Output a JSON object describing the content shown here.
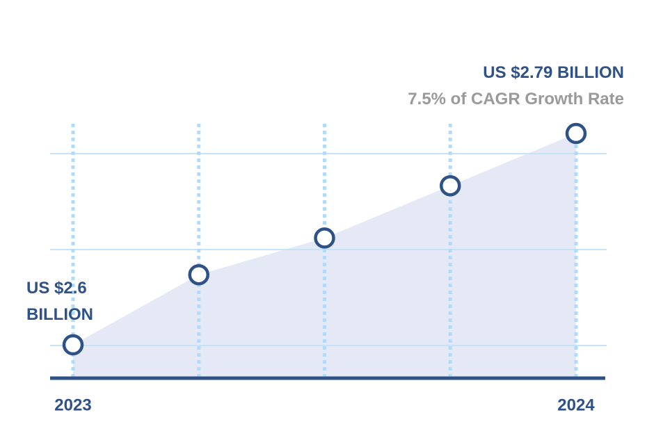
{
  "chart_data": {
    "type": "area",
    "categories": [
      "2023",
      null,
      null,
      null,
      "2024"
    ],
    "values": [
      2.6,
      2.663,
      2.696,
      2.743,
      2.79
    ],
    "ylim": [
      2.57,
      2.82
    ],
    "color": "#2e5288",
    "area_color": "#e4e9f5",
    "annotations": [
      "US $2.6 BILLION",
      "US $2.79 BILLION",
      "7.5% of CAGR Growth Rate"
    ]
  }
}
